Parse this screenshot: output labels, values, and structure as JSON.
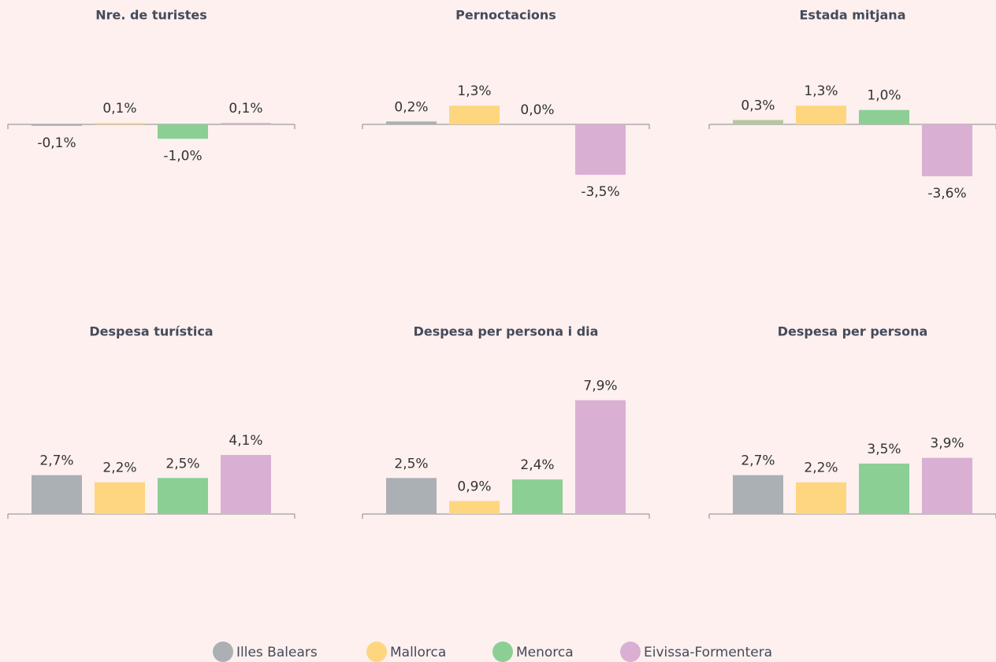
{
  "chart_data": [
    {
      "type": "bar",
      "title": "Nre. de turistes",
      "values": [
        -0.1,
        0.1,
        -1.0,
        0.1
      ],
      "value_labels": [
        "-0,1%",
        "0,1%",
        "-1,0%",
        "0,1%"
      ],
      "colors": [
        "#aab0b3",
        "#fdd67f",
        "#8ccf94",
        "#d9b0d3"
      ]
    },
    {
      "type": "bar",
      "title": "Pernoctacions",
      "values": [
        0.2,
        1.3,
        0.0,
        -3.5
      ],
      "value_labels": [
        "0,2%",
        "1,3%",
        "0,0%",
        "-3,5%"
      ],
      "colors": [
        "#aab0b3",
        "#fdd67f",
        "#8ccf94",
        "#d9b0d3"
      ]
    },
    {
      "type": "bar",
      "title": "Estada mitjana",
      "values": [
        0.3,
        1.3,
        1.0,
        -3.6
      ],
      "value_labels": [
        "0,3%",
        "1,3%",
        "1,0%",
        "-3,6%"
      ],
      "colors": [
        "#b4c8a0",
        "#fdd67f",
        "#8ccf94",
        "#d9b0d3"
      ]
    },
    {
      "type": "bar",
      "title": "Despesa turística",
      "values": [
        2.7,
        2.2,
        2.5,
        4.1
      ],
      "value_labels": [
        "2,7%",
        "2,2%",
        "2,5%",
        "4,1%"
      ],
      "colors": [
        "#aab0b3",
        "#fdd67f",
        "#8ccf94",
        "#d9b0d3"
      ]
    },
    {
      "type": "bar",
      "title": "Despesa per persona i dia",
      "values": [
        2.5,
        0.9,
        2.4,
        7.9
      ],
      "value_labels": [
        "2,5%",
        "0,9%",
        "2,4%",
        "7,9%"
      ],
      "colors": [
        "#aab0b3",
        "#fdd67f",
        "#8ccf94",
        "#d9b0d3"
      ]
    },
    {
      "type": "bar",
      "title": "Despesa per persona",
      "values": [
        2.7,
        2.2,
        3.5,
        3.9
      ],
      "value_labels": [
        "2,7%",
        "2,2%",
        "3,5%",
        "3,9%"
      ],
      "colors": [
        "#aab0b3",
        "#fdd67f",
        "#8ccf94",
        "#d9b0d3"
      ]
    }
  ],
  "legend": {
    "items": [
      {
        "name": "Illes Balears",
        "color": "#aab0b3"
      },
      {
        "name": "Mallorca",
        "color": "#fdd67f"
      },
      {
        "name": "Menorca",
        "color": "#8ccf94"
      },
      {
        "name": "Eivissa-Formentera",
        "color": "#d9b0d3"
      }
    ]
  }
}
